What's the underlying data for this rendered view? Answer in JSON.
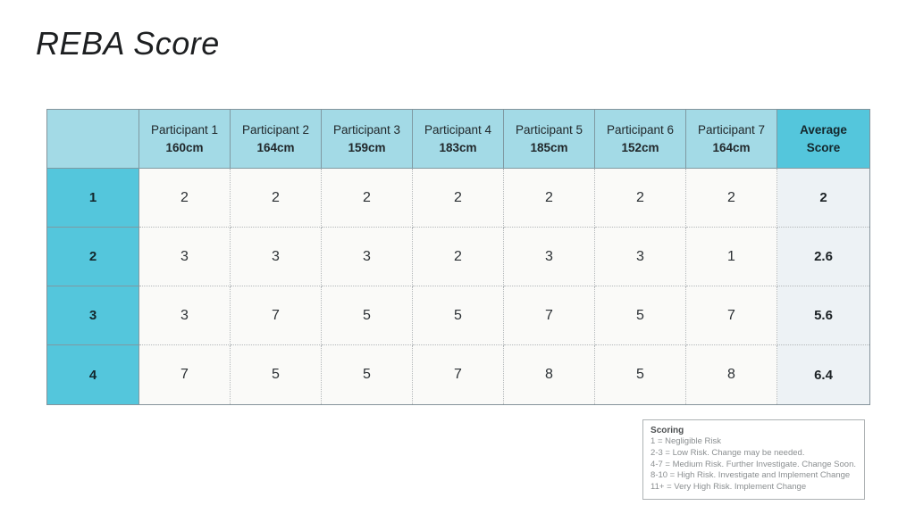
{
  "page": {
    "title": "REBA Score"
  },
  "table": {
    "corner_label": "",
    "columns": [
      {
        "name": "Participant 1",
        "height": "160cm"
      },
      {
        "name": "Participant 2",
        "height": "164cm"
      },
      {
        "name": "Participant 3",
        "height": "159cm"
      },
      {
        "name": "Participant 4",
        "height": "183cm"
      },
      {
        "name": "Participant 5",
        "height": "185cm"
      },
      {
        "name": "Participant 6",
        "height": "152cm"
      },
      {
        "name": "Participant 7",
        "height": "164cm"
      }
    ],
    "average_header": "Average\nScore",
    "rows": [
      {
        "label": "1",
        "values": [
          "2",
          "2",
          "2",
          "2",
          "2",
          "2",
          "2"
        ],
        "average": "2"
      },
      {
        "label": "2",
        "values": [
          "3",
          "3",
          "3",
          "2",
          "3",
          "3",
          "1"
        ],
        "average": "2.6"
      },
      {
        "label": "3",
        "values": [
          "3",
          "7",
          "5",
          "5",
          "7",
          "5",
          "7"
        ],
        "average": "5.6"
      },
      {
        "label": "4",
        "values": [
          "7",
          "5",
          "5",
          "7",
          "8",
          "5",
          "8"
        ],
        "average": "6.4"
      }
    ]
  },
  "legend": {
    "title": "Scoring",
    "lines": [
      "1 = Negligible Risk",
      "2-3 = Low Risk. Change may be needed.",
      "4-7 = Medium Risk. Further Investigate. Change Soon.",
      "8-10 = High Risk. Investigate and Implement Change",
      "11+ = Very High Risk. Implement Change"
    ]
  },
  "colors": {
    "header_light_blue": "#A3DAE6",
    "header_dark_turquoise": "#54C6DC",
    "body_cell_bg": "#FAFAF8",
    "average_column_bg": "#EDF2F5",
    "table_border": "#85939b",
    "dotted_border": "#b4b8ba"
  }
}
